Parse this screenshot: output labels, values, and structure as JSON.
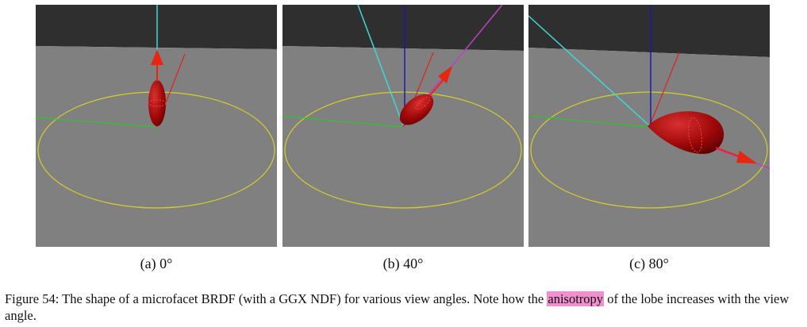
{
  "figure": {
    "panels": [
      {
        "caption": "(a) 0°"
      },
      {
        "caption": "(b) 40°"
      },
      {
        "caption": "(c) 80°"
      }
    ],
    "caption": {
      "before": "Figure 54: The shape of a microfacet BRDF (with a GGX NDF) for various view angles. Note how the ",
      "highlight": "anisotropy",
      "after": " of the lobe increases with the view angle."
    }
  },
  "colors": {
    "sky": "#2f2f2f",
    "ground": "#808080",
    "circle": "#d4cf2a",
    "normal": "#1a1aa8",
    "view": "#3fd6d6",
    "reflect": "#c040c0",
    "tangent": "#2fc42f",
    "light": "#e02020",
    "lobe": "#9e0808",
    "arrow": "#e8250e"
  }
}
